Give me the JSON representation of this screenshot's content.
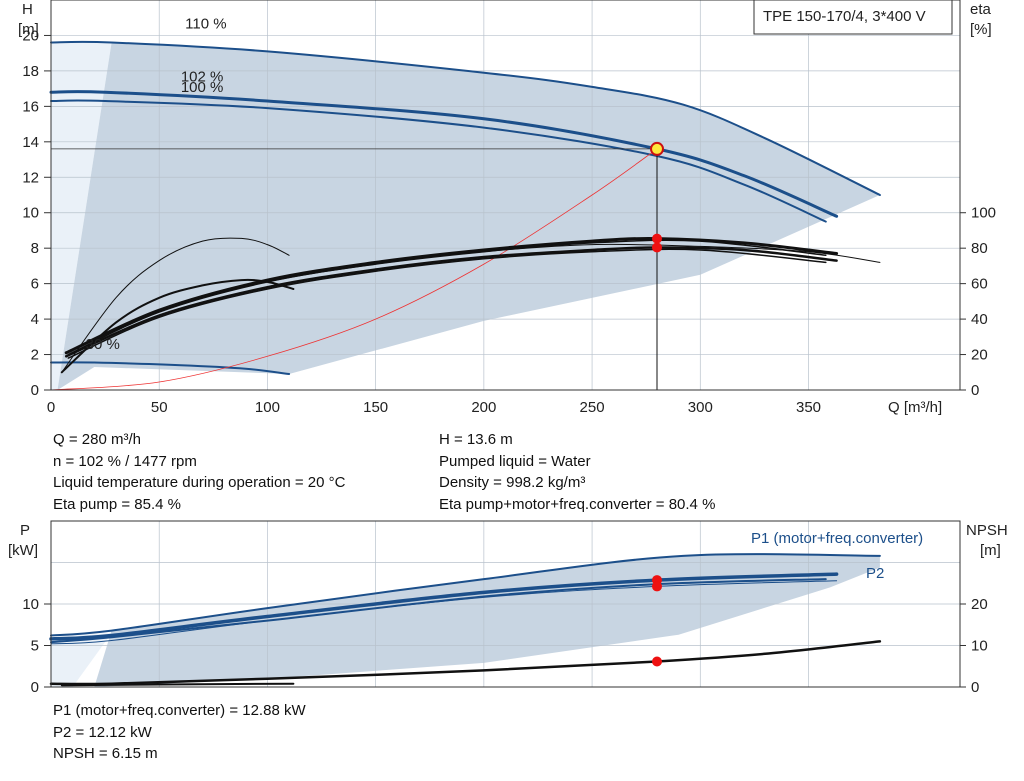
{
  "header": {
    "title": "TPE 150-170/4, 3*400 V"
  },
  "info_left": [
    "Q = 280 m³/h",
    "n = 102 % / 1477 rpm",
    "Liquid temperature during operation = 20 °C",
    "Eta pump = 85.4 %"
  ],
  "info_right": [
    "H = 13.6 m",
    "Pumped liquid = Water",
    "Density = 998.2 kg/m³",
    "Eta pump+motor+freq.converter = 80.4 %"
  ],
  "info_bottom": [
    "P1 (motor+freq.converter) = 12.88 kW",
    "P2 = 12.12 kW",
    "NPSH = 6.15 m"
  ],
  "colors": {
    "curve_blue": "#1c4f8a",
    "area": "#c8d5e2",
    "area_light": "#eaf1f8",
    "op_point": "#ee1111",
    "eff_curve": "#111111",
    "system_curve": "#ee3333"
  },
  "chart_data": [
    {
      "type": "line",
      "xlabel": "Q [m³/h]",
      "ylabel": "H [m]",
      "ylabel_lines": [
        "H",
        "[m]"
      ],
      "y2label_lines": [
        "eta",
        "[%]"
      ],
      "xlim": [
        0,
        420
      ],
      "ylim": [
        0,
        22
      ],
      "y2lim": [
        0,
        220
      ],
      "x_ticks": [
        0,
        50,
        100,
        150,
        200,
        250,
        300,
        350
      ],
      "y_ticks": [
        0,
        2,
        4,
        6,
        8,
        10,
        12,
        14,
        16,
        18,
        20
      ],
      "y2_ticks": [
        0,
        20,
        40,
        60,
        80,
        100
      ],
      "curve_labels": [
        {
          "text": "110 %",
          "q": 62,
          "h": 20.4
        },
        {
          "text": "102 %",
          "q": 60,
          "h": 17.4
        },
        {
          "text": "100 %",
          "q": 60,
          "h": 16.8
        },
        {
          "text": "30 %",
          "q": 16,
          "h": 2.3
        }
      ],
      "operating_point": {
        "q": 280,
        "h": 13.6,
        "eta_pump": 85.4,
        "eta_total": 80.4
      },
      "series": [
        {
          "name": "110 %",
          "kind": "head",
          "x": [
            0,
            28,
            100,
            200,
            250,
            292,
            330,
            383
          ],
          "y": [
            19.6,
            19.6,
            19.1,
            17.9,
            17.1,
            16.1,
            14.2,
            11.0
          ]
        },
        {
          "name": "102 %",
          "kind": "head",
          "x": [
            0,
            25,
            100,
            200,
            280,
            320,
            363
          ],
          "y": [
            16.8,
            16.8,
            16.3,
            15.3,
            13.6,
            12.1,
            9.8
          ]
        },
        {
          "name": "100 %",
          "kind": "head",
          "x": [
            0,
            25,
            100,
            200,
            280,
            320,
            358
          ],
          "y": [
            16.3,
            16.3,
            15.9,
            14.8,
            13.2,
            11.6,
            9.5
          ]
        },
        {
          "name": "30 %",
          "kind": "head",
          "x": [
            0,
            20,
            60,
            90,
            110
          ],
          "y": [
            1.55,
            1.55,
            1.4,
            1.2,
            0.9
          ]
        },
        {
          "kind": "system",
          "x": [
            0,
            50,
            100,
            150,
            200,
            250,
            280
          ],
          "y": [
            0,
            0.45,
            1.9,
            4.0,
            7.1,
            11.0,
            13.6
          ]
        },
        {
          "kind": "eta_pump_110",
          "x": [
            7,
            50,
            100,
            150,
            200,
            250,
            300,
            350,
            383
          ],
          "y": [
            21,
            45,
            61,
            71,
            78,
            82,
            81,
            78,
            72
          ]
        },
        {
          "kind": "eta_pump_102",
          "x": [
            7,
            50,
            100,
            150,
            200,
            250,
            280,
            320,
            363
          ],
          "y": [
            21,
            45,
            62,
            72,
            79,
            84,
            85.4,
            83,
            77
          ]
        },
        {
          "kind": "eta_pump_100",
          "x": [
            8,
            50,
            100,
            150,
            200,
            250,
            300,
            358
          ],
          "y": [
            20,
            44,
            61,
            71,
            78,
            83,
            84,
            76
          ]
        },
        {
          "kind": "eta_total_102",
          "x": [
            7,
            50,
            100,
            150,
            200,
            250,
            280,
            320,
            363
          ],
          "y": [
            19,
            42,
            58,
            68,
            75,
            79,
            80.4,
            79,
            73
          ]
        },
        {
          "kind": "eta_total_100",
          "x": [
            8,
            50,
            100,
            150,
            200,
            250,
            300,
            358
          ],
          "y": [
            18,
            41,
            57,
            67,
            74,
            78,
            79,
            72
          ]
        },
        {
          "kind": "eta_pump_30",
          "x": [
            5,
            30,
            50,
            70,
            88,
            100,
            110
          ],
          "y": [
            10,
            52,
            73,
            84,
            85.5,
            82,
            76
          ]
        },
        {
          "kind": "eta_total_30",
          "x": [
            5,
            30,
            50,
            70,
            88,
            100,
            112
          ],
          "y": [
            10,
            38,
            52,
            59,
            62,
            61,
            57
          ]
        }
      ]
    },
    {
      "type": "line",
      "ylabel_lines": [
        "P",
        "[kW]"
      ],
      "y2label_lines": [
        "NPSH",
        "[m]"
      ],
      "xlim": [
        0,
        420
      ],
      "ylim": [
        0,
        20
      ],
      "y2lim": [
        0,
        40
      ],
      "y_ticks": [
        0,
        5,
        10
      ],
      "y2_ticks": [
        0,
        10,
        20
      ],
      "series_labels": {
        "p1": "P1 (motor+freq.converter)",
        "p2": "P2"
      },
      "operating_point": {
        "q": 280,
        "p1": 12.88,
        "p2": 12.12,
        "npsh": 6.15
      },
      "series": [
        {
          "name": "P1 (motor+freq.converter)",
          "kind": "p1",
          "x": [
            0,
            28,
            100,
            200,
            292,
            383
          ],
          "y": [
            6.2,
            6.8,
            9.5,
            13.0,
            15.8,
            15.8
          ]
        },
        {
          "kind": "p1_102",
          "x": [
            0,
            28,
            100,
            200,
            280,
            363
          ],
          "y": [
            5.8,
            6.2,
            8.5,
            11.4,
            12.88,
            13.6
          ]
        },
        {
          "kind": "p1_100",
          "x": [
            0,
            28,
            100,
            200,
            280,
            358
          ],
          "y": [
            5.4,
            6.0,
            8.0,
            10.9,
            12.4,
            13.0
          ]
        },
        {
          "name": "P2",
          "kind": "p2",
          "x": [
            0,
            28,
            100,
            200,
            280,
            363
          ],
          "y": [
            5.2,
            5.6,
            8.0,
            10.8,
            12.12,
            12.8
          ]
        },
        {
          "kind": "npsh",
          "x": [
            0,
            28,
            100,
            200,
            280,
            330,
            383
          ],
          "y": [
            0.8,
            0.8,
            2.0,
            4.0,
            6.15,
            8.0,
            11.0
          ]
        },
        {
          "kind": "npsh_30",
          "x": [
            5,
            50,
            112
          ],
          "y": [
            0.4,
            0.6,
            0.8
          ]
        }
      ]
    }
  ]
}
